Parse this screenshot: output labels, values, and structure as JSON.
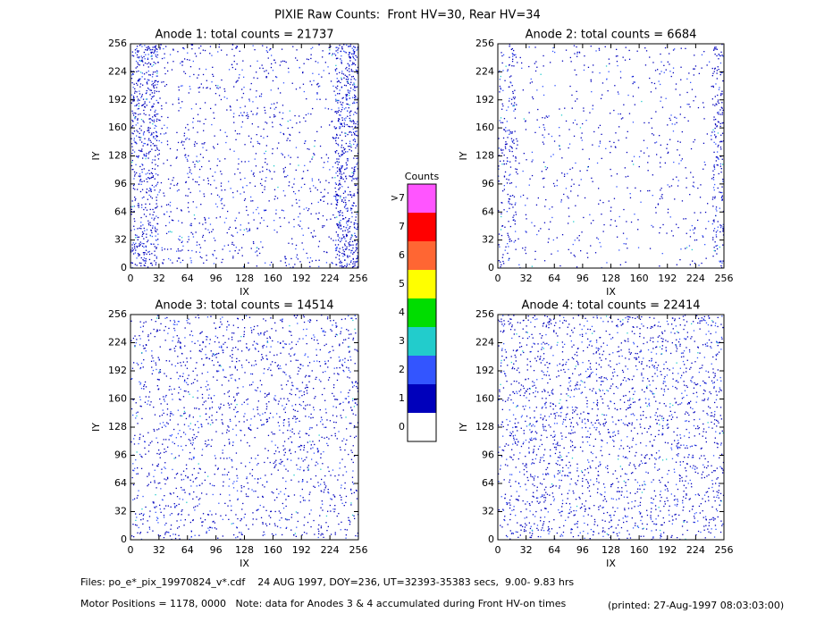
{
  "title": "PIXIE Raw Counts:  Front HV=30, Rear HV=34",
  "chart_data": [
    {
      "type": "heatmap",
      "title": "Anode 1: total counts = 21737",
      "xlabel": "IX",
      "ylabel": "IY",
      "xlim": [
        0,
        256
      ],
      "ylim": [
        0,
        256
      ],
      "xticks": [
        0,
        32,
        64,
        96,
        128,
        160,
        192,
        224,
        256
      ],
      "yticks": [
        0,
        32,
        64,
        96,
        128,
        160,
        192,
        224,
        256
      ]
    },
    {
      "type": "heatmap",
      "title": "Anode 2: total counts = 6684",
      "xlabel": "IX",
      "ylabel": "IY",
      "xlim": [
        0,
        256
      ],
      "ylim": [
        0,
        256
      ],
      "xticks": [
        0,
        32,
        64,
        96,
        128,
        160,
        192,
        224,
        256
      ],
      "yticks": [
        0,
        32,
        64,
        96,
        128,
        160,
        192,
        224,
        256
      ]
    },
    {
      "type": "heatmap",
      "title": "Anode 3: total counts = 14514",
      "xlabel": "IX",
      "ylabel": "IY",
      "xlim": [
        0,
        256
      ],
      "ylim": [
        0,
        256
      ],
      "xticks": [
        0,
        32,
        64,
        96,
        128,
        160,
        192,
        224,
        256
      ],
      "yticks": [
        0,
        32,
        64,
        96,
        128,
        160,
        192,
        224,
        256
      ]
    },
    {
      "type": "heatmap",
      "title": "Anode 4: total counts = 22414",
      "xlabel": "IX",
      "ylabel": "IY",
      "xlim": [
        0,
        256
      ],
      "ylim": [
        0,
        256
      ],
      "xticks": [
        0,
        32,
        64,
        96,
        128,
        160,
        192,
        224,
        256
      ],
      "yticks": [
        0,
        32,
        64,
        96,
        128,
        160,
        192,
        224,
        256
      ]
    }
  ],
  "colorbar": {
    "title": "Counts",
    "labels": [
      ">7",
      "7",
      "6",
      "5",
      "4",
      "3",
      "2",
      "1",
      "0"
    ],
    "colors": [
      "#ff55ff",
      "#ff0000",
      "#ff6633",
      "#ffff00",
      "#00dd00",
      "#22cccc",
      "#3355ff",
      "#0000bb",
      "#ffffff"
    ]
  },
  "footer": {
    "files": "Files: po_e*_pix_19970824_v*.cdf    24 AUG 1997, DOY=236, UT=32393-35383 secs,  9.00- 9.83 hrs",
    "motor": "Motor Positions = 1178, 0000   Note: data for Anodes 3 & 4 accumulated during Front HV-on times",
    "printed": "(printed: 27-Aug-1997 08:03:03:00)"
  }
}
